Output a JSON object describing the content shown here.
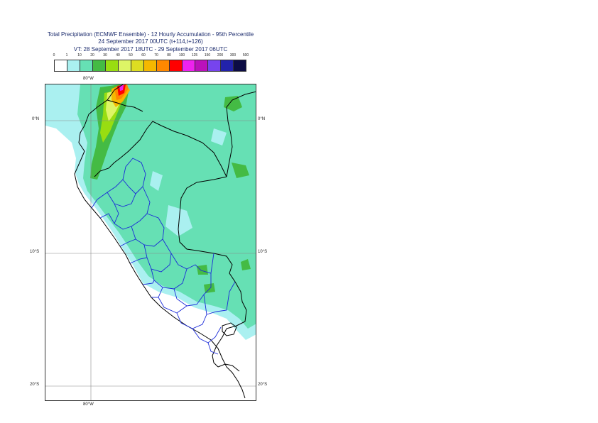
{
  "title": {
    "line1": "Total Precipitation (ECMWF Ensemble) - 12 Hourly Accumulation - 95th Percentile",
    "line2": "24 September 2017 00UTC (t+114,t+126)",
    "line3": "VT: 28 September 2017 18UTC - 29 September 2017 06UTC"
  },
  "legend": {
    "thresholds": [
      "0",
      "1",
      "10",
      "20",
      "30",
      "40",
      "50",
      "60",
      "70",
      "80",
      "100",
      "125",
      "150",
      "200",
      "300",
      "500"
    ],
    "colors": [
      "#ffffff",
      "#aaf0f0",
      "#66e0b4",
      "#44bb44",
      "#99dd11",
      "#ddf566",
      "#dddd22",
      "#f5b800",
      "#ff8800",
      "#ff0000",
      "#ee22ee",
      "#bb11bb",
      "#7744ee",
      "#2222aa",
      "#0c0c44"
    ]
  },
  "map": {
    "lon_top_label": "80°W",
    "lon_bottom_label": "80°W",
    "lat_labels_left": [
      "0°N",
      "10°S",
      "20°S"
    ],
    "lat_labels_right": [
      "0°N",
      "10°S",
      "20°S"
    ]
  }
}
